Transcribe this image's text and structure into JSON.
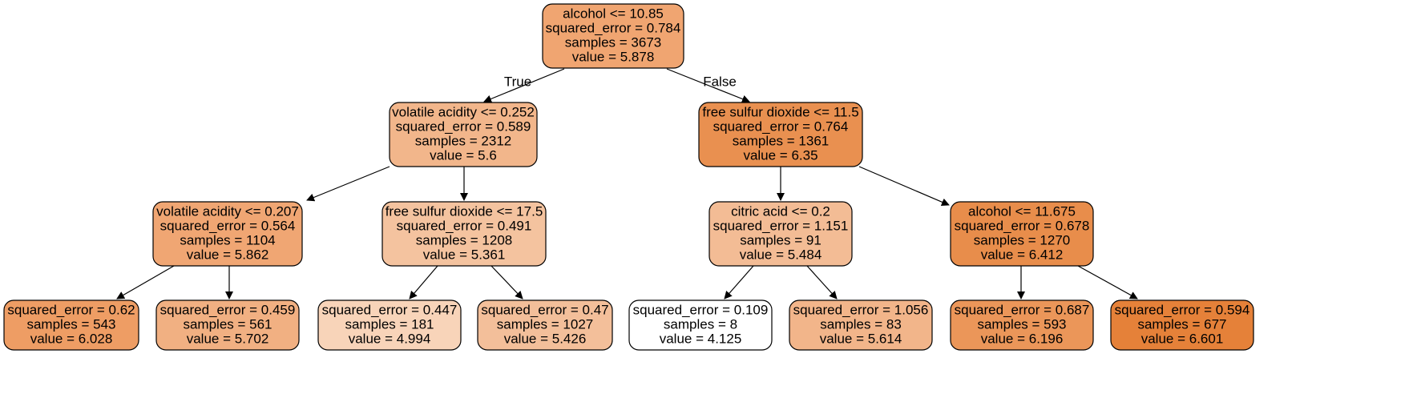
{
  "tree": {
    "nodes": [
      {
        "id": "n0",
        "lines": [
          "alcohol <= 10.85",
          "squared_error = 0.784",
          "samples = 3673",
          "value = 5.878"
        ],
        "fill": "#f0a571"
      },
      {
        "id": "n1",
        "lines": [
          "volatile acidity <= 0.252",
          "squared_error = 0.589",
          "samples = 2312",
          "value = 5.6"
        ],
        "fill": "#f2b68b"
      },
      {
        "id": "n2",
        "lines": [
          "free sulfur dioxide <= 11.5",
          "squared_error = 0.764",
          "samples = 1361",
          "value = 6.35"
        ],
        "fill": "#e99050"
      },
      {
        "id": "n3",
        "lines": [
          "volatile acidity <= 0.207",
          "squared_error = 0.564",
          "samples = 1104",
          "value = 5.862"
        ],
        "fill": "#f0a673"
      },
      {
        "id": "n4",
        "lines": [
          "free sulfur dioxide <= 17.5",
          "squared_error = 0.491",
          "samples = 1208",
          "value = 5.361"
        ],
        "fill": "#f4c39f"
      },
      {
        "id": "n5",
        "lines": [
          "citric acid <= 0.2",
          "squared_error = 1.151",
          "samples = 91",
          "value = 5.484"
        ],
        "fill": "#f3bc95"
      },
      {
        "id": "n6",
        "lines": [
          "alcohol <= 11.675",
          "squared_error = 0.678",
          "samples = 1270",
          "value = 6.412"
        ],
        "fill": "#e88d4b"
      },
      {
        "id": "n7",
        "lines": [
          "squared_error = 0.62",
          "samples = 543",
          "value = 6.028"
        ],
        "fill": "#ee9d64"
      },
      {
        "id": "n8",
        "lines": [
          "squared_error = 0.459",
          "samples = 561",
          "value = 5.702"
        ],
        "fill": "#f1b082"
      },
      {
        "id": "n9",
        "lines": [
          "squared_error = 0.447",
          "samples = 181",
          "value = 4.994"
        ],
        "fill": "#f8d4b9"
      },
      {
        "id": "n10",
        "lines": [
          "squared_error = 0.47",
          "samples = 1027",
          "value = 5.426"
        ],
        "fill": "#f3bf9a"
      },
      {
        "id": "n11",
        "lines": [
          "squared_error = 0.109",
          "samples = 8",
          "value = 4.125"
        ],
        "fill": "#ffffff"
      },
      {
        "id": "n12",
        "lines": [
          "squared_error = 1.056",
          "samples = 83",
          "value = 5.614"
        ],
        "fill": "#f2b58a"
      },
      {
        "id": "n13",
        "lines": [
          "squared_error = 0.687",
          "samples = 593",
          "value = 6.196"
        ],
        "fill": "#eb9659"
      },
      {
        "id": "n14",
        "lines": [
          "squared_error = 0.594",
          "samples = 677",
          "value = 6.601"
        ],
        "fill": "#e58139"
      }
    ],
    "edges": [
      {
        "from": "n0",
        "to": "n1",
        "label": "True"
      },
      {
        "from": "n0",
        "to": "n2",
        "label": "False"
      },
      {
        "from": "n1",
        "to": "n3"
      },
      {
        "from": "n1",
        "to": "n4"
      },
      {
        "from": "n2",
        "to": "n5"
      },
      {
        "from": "n2",
        "to": "n6"
      },
      {
        "from": "n3",
        "to": "n7"
      },
      {
        "from": "n3",
        "to": "n8"
      },
      {
        "from": "n4",
        "to": "n9"
      },
      {
        "from": "n4",
        "to": "n10"
      },
      {
        "from": "n5",
        "to": "n11"
      },
      {
        "from": "n5",
        "to": "n12"
      },
      {
        "from": "n6",
        "to": "n13"
      },
      {
        "from": "n6",
        "to": "n14"
      }
    ]
  }
}
